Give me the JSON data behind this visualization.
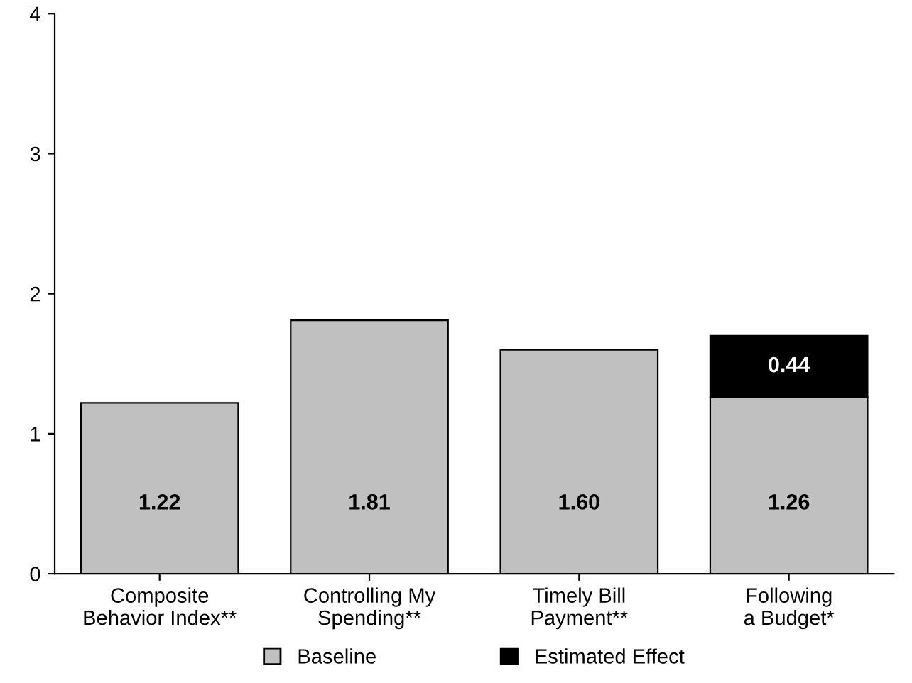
{
  "chart_data": {
    "type": "bar",
    "stacked": true,
    "categories": [
      "Composite\nBehavior Index**",
      "Controlling My\nSpending**",
      "Timely Bill\nPayment**",
      "Following\na Budget*"
    ],
    "series": [
      {
        "name": "Baseline",
        "color": "#c0c0c0",
        "values": [
          1.22,
          1.81,
          1.6,
          1.26
        ],
        "value_labels": [
          "1.22",
          "1.81",
          "1.60",
          "1.26"
        ]
      },
      {
        "name": "Estimated Effect",
        "color": "#000000",
        "values": [
          null,
          null,
          null,
          0.44
        ],
        "value_labels": [
          null,
          null,
          null,
          "0.44"
        ]
      }
    ],
    "ylim": [
      0,
      4
    ],
    "yticks": [
      0,
      1,
      2,
      3,
      4
    ],
    "grid": false,
    "legend": "bottom"
  }
}
